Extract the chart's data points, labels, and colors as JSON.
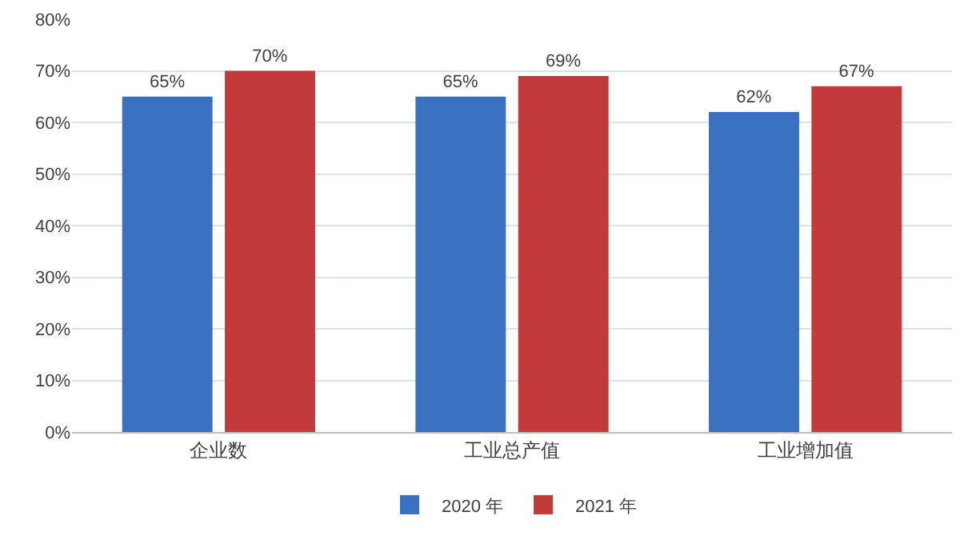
{
  "chart_data": {
    "type": "bar",
    "categories": [
      "企业数",
      "工业总产值",
      "工业增加值"
    ],
    "series": [
      {
        "name": "2020 年",
        "color": "#3a70c0",
        "values": [
          65,
          65,
          62
        ],
        "value_labels": [
          "65%",
          "65%",
          "62%"
        ]
      },
      {
        "name": "2021 年",
        "color": "#c23b3a",
        "values": [
          70,
          69,
          67
        ],
        "value_labels": [
          "70%",
          "69%",
          "67%"
        ]
      }
    ],
    "ylim": [
      0,
      80
    ],
    "yticks": [
      {
        "value": 0,
        "label": "0%"
      },
      {
        "value": 10,
        "label": "10%"
      },
      {
        "value": 20,
        "label": "20%"
      },
      {
        "value": 30,
        "label": "30%"
      },
      {
        "value": 40,
        "label": "40%"
      },
      {
        "value": 50,
        "label": "50%"
      },
      {
        "value": 60,
        "label": "60%"
      },
      {
        "value": 70,
        "label": "70%"
      },
      {
        "value": 80,
        "label": "80%"
      }
    ],
    "grid": "y",
    "legend": "bottom"
  }
}
